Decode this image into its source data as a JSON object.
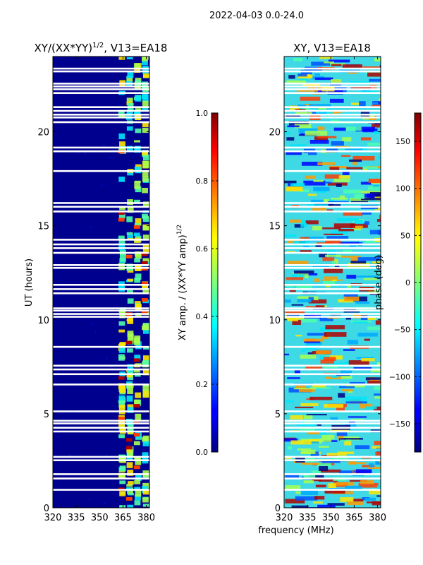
{
  "suptitle": "2022-04-03 0.0-24.0",
  "chart_data": [
    {
      "type": "heatmap",
      "title": "XY/(XX*YY)^1/2, V13=EA18",
      "title_main": "XY/(XX*YY)",
      "title_sup": "1/2",
      "title_tail": ", V13=EA18",
      "xlabel": "",
      "ylabel": "UT (hours)",
      "xlim": [
        320,
        382
      ],
      "ylim": [
        0,
        24
      ],
      "xticks": [
        320,
        335,
        350,
        365,
        380
      ],
      "yticks": [
        0,
        5,
        10,
        15,
        20
      ],
      "colorbar": {
        "label_main": "XY amp. / (XX*YY amp)",
        "label_sup": "1/2",
        "range": [
          0.0,
          1.0
        ],
        "ticks": [
          "0.0",
          "0.2",
          "0.4",
          "0.6",
          "0.8",
          "1.0"
        ],
        "colormap": "jet"
      },
      "flagged_rows_hours": [
        0.95,
        1.55,
        1.78,
        2.52,
        2.7,
        4.05,
        4.25,
        4.48,
        4.62,
        5.12,
        6.55,
        7.1,
        7.35,
        7.55,
        8.55,
        10.15,
        10.3,
        10.48,
        10.6,
        11.4,
        11.62,
        11.85,
        12.75,
        12.9,
        13.55,
        13.8,
        14.0,
        14.25,
        15.75,
        16.0,
        16.2,
        17.9,
        18.95,
        19.15,
        20.5,
        20.75,
        20.9,
        21.1,
        21.3,
        22.05,
        22.25,
        22.4,
        22.55,
        23.2,
        23.35
      ]
    },
    {
      "type": "heatmap",
      "title": "XY, V13=EA18",
      "xlabel": "frequency (MHz)",
      "ylabel": "",
      "xlim": [
        320,
        382
      ],
      "ylim": [
        0,
        24
      ],
      "xticks": [
        320,
        335,
        350,
        365,
        380
      ],
      "yticks": [
        0,
        5,
        10,
        15,
        20
      ],
      "colorbar": {
        "label_main": "phase (deg)",
        "label_sup": "",
        "range": [
          -180,
          180
        ],
        "ticks": [
          "−150",
          "−100",
          "−50",
          "0",
          "50",
          "100",
          "150"
        ],
        "tick_values": [
          -150,
          -100,
          -50,
          0,
          50,
          100,
          150
        ],
        "colormap": "jet"
      },
      "flagged_rows_hours": [
        0.95,
        1.55,
        1.78,
        2.52,
        2.7,
        4.05,
        4.25,
        4.48,
        4.62,
        5.12,
        6.55,
        7.1,
        7.35,
        7.55,
        8.55,
        10.15,
        10.3,
        10.48,
        10.6,
        11.4,
        11.62,
        11.85,
        12.75,
        12.9,
        13.55,
        13.8,
        14.0,
        14.25,
        15.75,
        16.0,
        16.2,
        17.9,
        18.95,
        19.15,
        20.5,
        20.75,
        20.9,
        21.1,
        21.3,
        22.05,
        22.25,
        22.4,
        22.55,
        23.2,
        23.35
      ]
    }
  ]
}
